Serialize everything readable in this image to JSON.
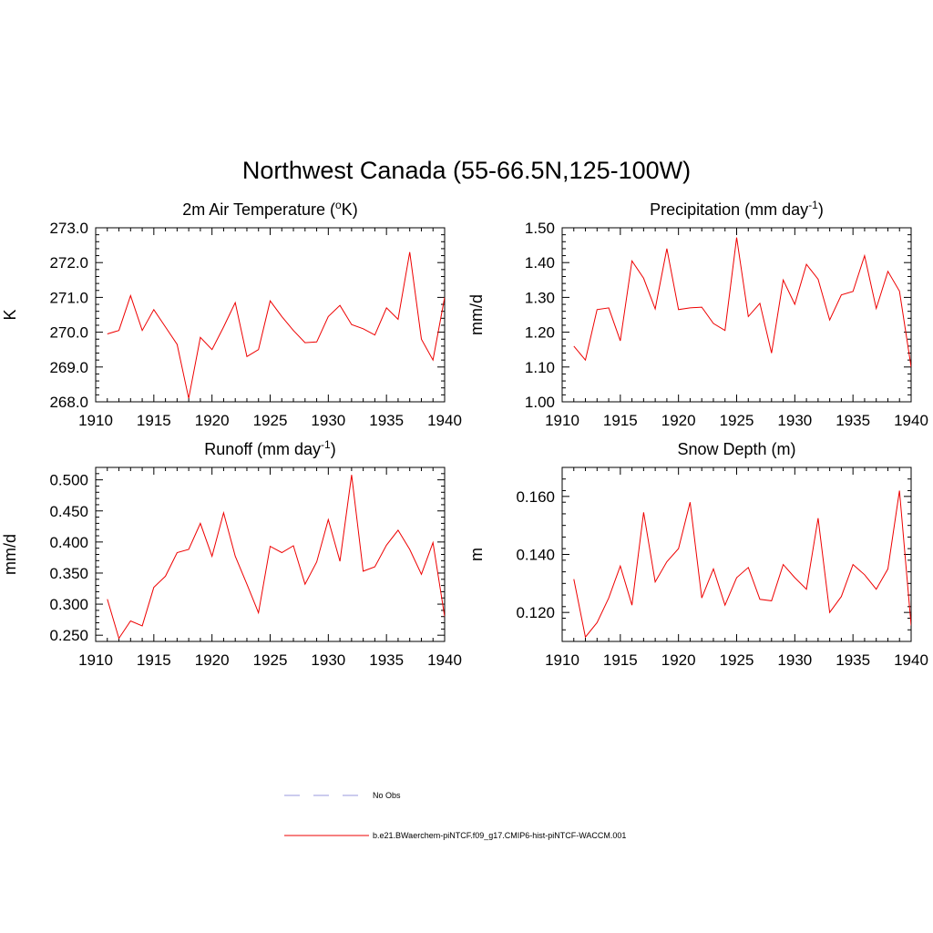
{
  "figure": {
    "title": "Northwest Canada (55-66.5N,125-100W)"
  },
  "legend": {
    "entries": [
      {
        "label": "No Obs",
        "color": "#9999dd",
        "style": "dashed"
      },
      {
        "label": "b.e21.BWaerchem-piNTCF.f09_g17.CMIP6-hist-piNTCF-WACCM.001",
        "color": "#ee0000",
        "style": "solid"
      }
    ]
  },
  "chart_data": [
    {
      "type": "line",
      "title": "2m Air Temperature (",
      "title_sup": "o",
      "title_after": "K)",
      "ylabel": "K",
      "xlim": [
        1910,
        1940
      ],
      "ylim": [
        268.0,
        273.0
      ],
      "xticks": [
        "1910",
        "1915",
        "1920",
        "1925",
        "1930",
        "1935",
        "1940"
      ],
      "yticks": [
        "268.0",
        "269.0",
        "270.0",
        "271.0",
        "272.0",
        "273.0"
      ],
      "grid": false,
      "series": [
        {
          "color": "#ee0000",
          "x": [
            1911,
            1912,
            1913,
            1914,
            1915,
            1916,
            1917,
            1918,
            1919,
            1920,
            1921,
            1922,
            1923,
            1924,
            1925,
            1926,
            1927,
            1928,
            1929,
            1930,
            1931,
            1932,
            1933,
            1934,
            1935,
            1936,
            1937,
            1938,
            1939,
            1940
          ],
          "y": [
            269.95,
            270.05,
            271.05,
            270.05,
            270.65,
            270.15,
            269.65,
            268.1,
            269.85,
            269.5,
            270.15,
            270.85,
            269.3,
            269.5,
            270.9,
            270.45,
            270.05,
            269.7,
            269.72,
            270.45,
            270.77,
            270.22,
            270.1,
            269.92,
            270.7,
            270.37,
            272.3,
            269.8,
            269.2,
            271.0
          ]
        }
      ]
    },
    {
      "type": "line",
      "title": "Precipitation (mm day",
      "title_sup": "-1",
      "title_after": ")",
      "ylabel": "mm/d",
      "xlim": [
        1910,
        1940
      ],
      "ylim": [
        1.0,
        1.5
      ],
      "xticks": [
        "1910",
        "1915",
        "1920",
        "1925",
        "1930",
        "1935",
        "1940"
      ],
      "yticks": [
        "1.00",
        "1.10",
        "1.20",
        "1.30",
        "1.40",
        "1.50"
      ],
      "grid": false,
      "series": [
        {
          "color": "#ee0000",
          "x": [
            1911,
            1912,
            1913,
            1914,
            1915,
            1916,
            1917,
            1918,
            1919,
            1920,
            1921,
            1922,
            1923,
            1924,
            1925,
            1926,
            1927,
            1928,
            1929,
            1930,
            1931,
            1932,
            1933,
            1934,
            1935,
            1936,
            1937,
            1938,
            1939,
            1940
          ],
          "y": [
            1.16,
            1.12,
            1.265,
            1.27,
            1.175,
            1.405,
            1.355,
            1.267,
            1.44,
            1.265,
            1.27,
            1.272,
            1.225,
            1.205,
            1.472,
            1.245,
            1.283,
            1.14,
            1.35,
            1.28,
            1.395,
            1.352,
            1.235,
            1.307,
            1.317,
            1.42,
            1.268,
            1.375,
            1.318,
            1.1
          ]
        }
      ]
    },
    {
      "type": "line",
      "title": "Runoff (mm day",
      "title_sup": "-1",
      "title_after": ")",
      "ylabel": "mm/d",
      "xlim": [
        1910,
        1940
      ],
      "ylim": [
        0.24,
        0.52
      ],
      "xticks": [
        "1910",
        "1915",
        "1920",
        "1925",
        "1930",
        "1935",
        "1940"
      ],
      "yticks": [
        "0.250",
        "0.300",
        "0.350",
        "0.400",
        "0.450",
        "0.500"
      ],
      "grid": false,
      "series": [
        {
          "color": "#ee0000",
          "x": [
            1911,
            1912,
            1913,
            1914,
            1915,
            1916,
            1917,
            1918,
            1919,
            1920,
            1921,
            1922,
            1923,
            1924,
            1925,
            1926,
            1927,
            1928,
            1929,
            1930,
            1931,
            1932,
            1933,
            1934,
            1935,
            1936,
            1937,
            1938,
            1939,
            1940
          ],
          "y": [
            0.308,
            0.245,
            0.273,
            0.265,
            0.327,
            0.345,
            0.383,
            0.388,
            0.43,
            0.377,
            0.447,
            0.377,
            0.332,
            0.286,
            0.393,
            0.383,
            0.394,
            0.332,
            0.368,
            0.436,
            0.369,
            0.508,
            0.353,
            0.36,
            0.395,
            0.419,
            0.388,
            0.348,
            0.399,
            0.28
          ]
        }
      ]
    },
    {
      "type": "line",
      "title": "Snow Depth (m)",
      "title_sup": "",
      "title_after": "",
      "ylabel": "m",
      "xlim": [
        1910,
        1940
      ],
      "ylim": [
        0.11,
        0.17
      ],
      "xticks": [
        "1910",
        "1915",
        "1920",
        "1925",
        "1930",
        "1935",
        "1940"
      ],
      "yticks": [
        "0.120",
        "0.140",
        "0.160"
      ],
      "grid": false,
      "series": [
        {
          "color": "#ee0000",
          "x": [
            1911,
            1912,
            1913,
            1914,
            1915,
            1916,
            1917,
            1918,
            1919,
            1920,
            1921,
            1922,
            1923,
            1924,
            1925,
            1926,
            1927,
            1928,
            1929,
            1930,
            1931,
            1932,
            1933,
            1934,
            1935,
            1936,
            1937,
            1938,
            1939,
            1940
          ],
          "y": [
            0.1315,
            0.1115,
            0.1165,
            0.125,
            0.136,
            0.1225,
            0.1545,
            0.1305,
            0.1375,
            0.142,
            0.158,
            0.125,
            0.135,
            0.1225,
            0.132,
            0.1355,
            0.1245,
            0.124,
            0.1365,
            0.132,
            0.128,
            0.1525,
            0.12,
            0.1255,
            0.1365,
            0.133,
            0.128,
            0.135,
            0.162,
            0.1155
          ]
        }
      ]
    }
  ]
}
